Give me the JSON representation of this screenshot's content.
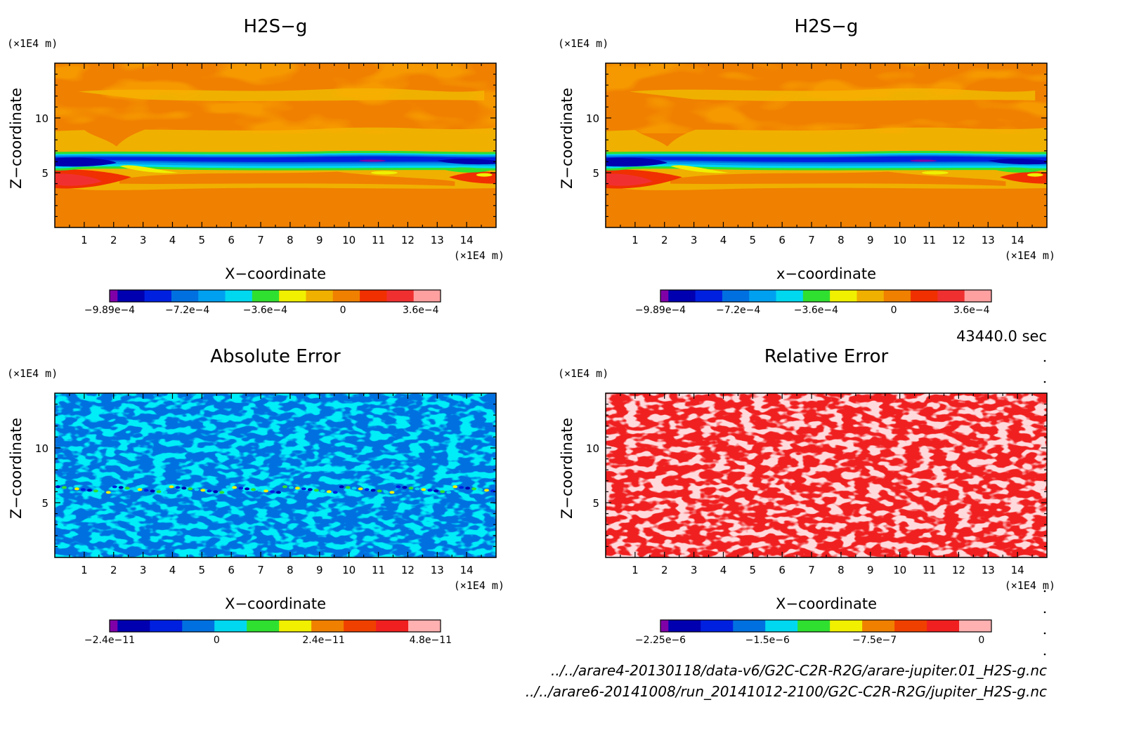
{
  "time_label": "43440.0 sec",
  "footer_files": [
    "../../arare4-20130118/data-v6/G2C-C2R-R2G/arare-jupiter.01_H2S-g.nc",
    "../../arare6-20141008/run_20141012-2100/G2C-C2R-R2G/jupiter_H2S-g.nc"
  ],
  "chart_data": [
    {
      "type": "heatmap",
      "title": "H2S−g",
      "xlabel": "X−coordinate",
      "ylabel": "Z−coordinate",
      "x_unit": "(×1E4 m)",
      "y_unit": "(×1E4 m)",
      "xlim": [
        0,
        15
      ],
      "ylim": [
        0,
        15
      ],
      "x_ticks": [
        "1",
        "2",
        "3",
        "4",
        "5",
        "6",
        "7",
        "8",
        "9",
        "10",
        "11",
        "12",
        "13",
        "14"
      ],
      "y_ticks": [
        "5",
        "10"
      ],
      "field": "h2s",
      "colorbar": {
        "colors": [
          "#8000a8",
          "#0000b0",
          "#0020e0",
          "#0070e0",
          "#00a0f0",
          "#00d8f0",
          "#30e030",
          "#f0f000",
          "#f0b000",
          "#f08000",
          "#f03000",
          "#f03030",
          "#ffa0a0"
        ],
        "tick_labels": [
          "−9.89e−4",
          "−7.2e−4",
          "−3.6e−4",
          "0",
          "3.6e−4"
        ]
      }
    },
    {
      "type": "heatmap",
      "title": "H2S−g",
      "xlabel": "x−coordinate",
      "ylabel": "Z−coordinate",
      "x_unit": "(×1E4 m)",
      "y_unit": "(×1E4 m)",
      "xlim": [
        0,
        15
      ],
      "ylim": [
        0,
        15
      ],
      "x_ticks": [
        "1",
        "2",
        "3",
        "4",
        "5",
        "6",
        "7",
        "8",
        "9",
        "10",
        "11",
        "12",
        "13",
        "14"
      ],
      "y_ticks": [
        "5",
        "10"
      ],
      "field": "h2s",
      "colorbar": {
        "colors": [
          "#8000a8",
          "#0000b0",
          "#0020e0",
          "#0070e0",
          "#00a0f0",
          "#00d8f0",
          "#30e030",
          "#f0f000",
          "#f0b000",
          "#f08000",
          "#f03000",
          "#f03030",
          "#ffa0a0"
        ],
        "tick_labels": [
          "−9.89e−4",
          "−7.2e−4",
          "−3.6e−4",
          "0",
          "3.6e−4"
        ]
      }
    },
    {
      "type": "heatmap",
      "title": "Absolute Error",
      "xlabel": "X−coordinate",
      "ylabel": "Z−coordinate",
      "x_unit": "(×1E4 m)",
      "y_unit": "(×1E4 m)",
      "xlim": [
        0,
        15
      ],
      "ylim": [
        0,
        15
      ],
      "x_ticks": [
        "1",
        "2",
        "3",
        "4",
        "5",
        "6",
        "7",
        "8",
        "9",
        "10",
        "11",
        "12",
        "13",
        "14"
      ],
      "y_ticks": [
        "5",
        "10"
      ],
      "field": "abs",
      "colorbar": {
        "colors": [
          "#8000a8",
          "#0000b0",
          "#0020e0",
          "#0070e0",
          "#00d8f0",
          "#30e030",
          "#f0f000",
          "#f08000",
          "#f04000",
          "#f02020",
          "#ffb0b0"
        ],
        "tick_labels": [
          "−2.4e−11",
          "0",
          "2.4e−11",
          "4.8e−11"
        ]
      }
    },
    {
      "type": "heatmap",
      "title": "Relative Error",
      "xlabel": "X−coordinate",
      "ylabel": "Z−coordinate",
      "x_unit": "(×1E4 m)",
      "y_unit": "(×1E4 m)",
      "xlim": [
        0,
        15
      ],
      "ylim": [
        0,
        15
      ],
      "x_ticks": [
        "1",
        "2",
        "3",
        "4",
        "5",
        "6",
        "7",
        "8",
        "9",
        "10",
        "11",
        "12",
        "13",
        "14"
      ],
      "y_ticks": [
        "5",
        "10"
      ],
      "field": "rel",
      "colorbar": {
        "colors": [
          "#8000a8",
          "#0000b0",
          "#0020e0",
          "#0070e0",
          "#00d8f0",
          "#30e030",
          "#f0f000",
          "#f08000",
          "#f04000",
          "#f02020",
          "#ffb0b0"
        ],
        "tick_labels": [
          "−2.25e−6",
          "−1.5e−6",
          "−7.5e−7",
          "0"
        ]
      }
    }
  ]
}
